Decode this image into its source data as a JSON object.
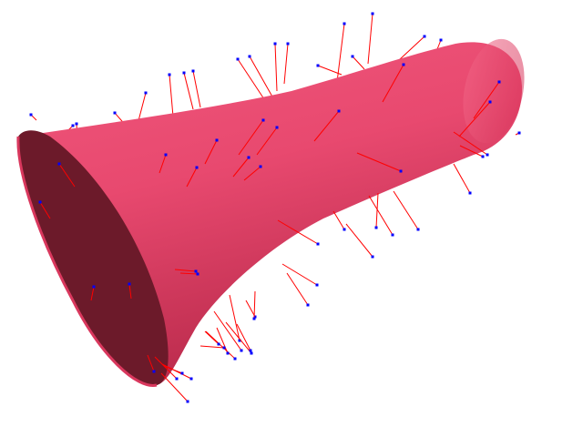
{
  "scene": {
    "background": "#ffffff",
    "surface": {
      "shape": "flared-tube",
      "colors": {
        "highlight": "#f0577c",
        "mid": "#e03e63",
        "shadow": "#a8203f",
        "open_end_interior": "#6c1a2a"
      }
    },
    "normals": {
      "line_color": "#ff0000",
      "endpoint_color": "#0000ff",
      "count": 96
    }
  }
}
